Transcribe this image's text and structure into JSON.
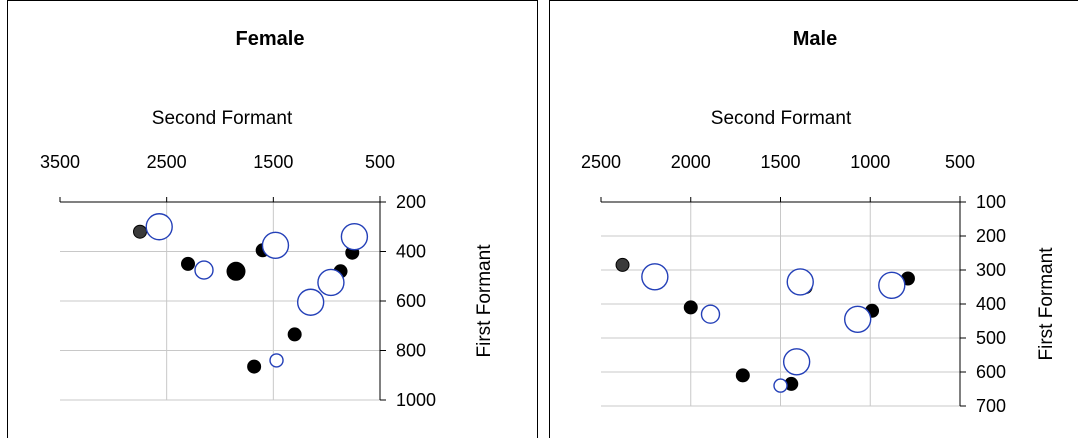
{
  "chart_data": [
    {
      "type": "scatter",
      "title": "Female",
      "xlabel": "Second Formant",
      "ylabel": "First Formant",
      "x_reversed": true,
      "y_reversed": true,
      "x_axis_position": "top",
      "y_axis_position": "right",
      "xlim": [
        3500,
        500
      ],
      "ylim": [
        200,
        1000
      ],
      "x_ticks": [
        "3500",
        "2500",
        "1500",
        "500"
      ],
      "y_ticks": [
        "200",
        "400",
        "600",
        "800",
        "1000"
      ],
      "grid": true,
      "series": [
        {
          "marker": "filled-circle",
          "color": "#000000",
          "points": [
            {
              "x": 2750,
              "y": 320,
              "size": "small",
              "color": "#3a3a3a"
            },
            {
              "x": 2300,
              "y": 450,
              "size": "small"
            },
            {
              "x": 1850,
              "y": 480,
              "size": "medium"
            },
            {
              "x": 1600,
              "y": 395,
              "size": "small"
            },
            {
              "x": 870,
              "y": 480,
              "size": "small"
            },
            {
              "x": 760,
              "y": 405,
              "size": "small"
            },
            {
              "x": 1300,
              "y": 735,
              "size": "small"
            },
            {
              "x": 1680,
              "y": 865,
              "size": "small"
            }
          ]
        },
        {
          "marker": "open-circle",
          "color": "#2440b8",
          "points": [
            {
              "x": 2570,
              "y": 300,
              "size": "large"
            },
            {
              "x": 2150,
              "y": 475,
              "size": "medium"
            },
            {
              "x": 1480,
              "y": 375,
              "size": "large"
            },
            {
              "x": 740,
              "y": 340,
              "size": "large"
            },
            {
              "x": 960,
              "y": 525,
              "size": "large"
            },
            {
              "x": 1150,
              "y": 605,
              "size": "large"
            },
            {
              "x": 1470,
              "y": 840,
              "size": "small"
            }
          ]
        }
      ]
    },
    {
      "type": "scatter",
      "title": "Male",
      "xlabel": "Second Formant",
      "ylabel": "First Formant",
      "x_reversed": true,
      "y_reversed": true,
      "x_axis_position": "top",
      "y_axis_position": "right",
      "xlim": [
        2500,
        500
      ],
      "ylim": [
        100,
        700
      ],
      "x_ticks": [
        "2500",
        "2000",
        "1500",
        "1000",
        "500"
      ],
      "y_ticks": [
        "100",
        "200",
        "300",
        "400",
        "500",
        "600",
        "700"
      ],
      "grid": true,
      "series": [
        {
          "marker": "filled-circle",
          "color": "#000000",
          "points": [
            {
              "x": 2380,
              "y": 285,
              "size": "small",
              "color": "#3a3a3a"
            },
            {
              "x": 2000,
              "y": 410,
              "size": "small"
            },
            {
              "x": 1360,
              "y": 350,
              "size": "small"
            },
            {
              "x": 790,
              "y": 325,
              "size": "small"
            },
            {
              "x": 990,
              "y": 420,
              "size": "small"
            },
            {
              "x": 1710,
              "y": 610,
              "size": "small"
            },
            {
              "x": 1440,
              "y": 635,
              "size": "small"
            }
          ]
        },
        {
          "marker": "open-circle",
          "color": "#2440b8",
          "points": [
            {
              "x": 2200,
              "y": 320,
              "size": "large"
            },
            {
              "x": 1890,
              "y": 430,
              "size": "medium"
            },
            {
              "x": 1390,
              "y": 335,
              "size": "large"
            },
            {
              "x": 880,
              "y": 345,
              "size": "large"
            },
            {
              "x": 1070,
              "y": 445,
              "size": "large"
            },
            {
              "x": 1410,
              "y": 570,
              "size": "large"
            },
            {
              "x": 1500,
              "y": 640,
              "size": "small"
            }
          ]
        }
      ]
    }
  ]
}
